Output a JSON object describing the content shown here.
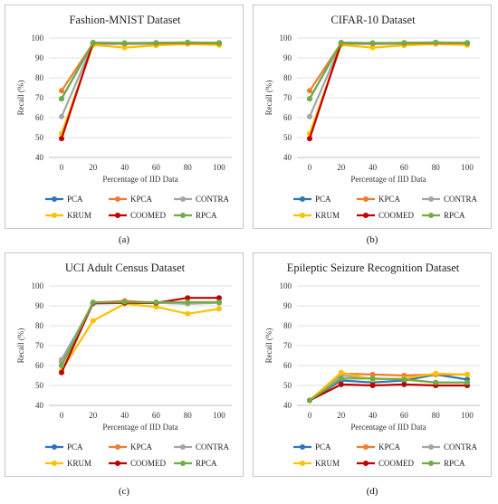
{
  "chart_data": [
    {
      "type": "line",
      "title": "Fashion-MNIST Dataset",
      "xlabel": "Percentage of IID Data",
      "ylabel": "Recall (%)",
      "categories": [
        "0",
        "20",
        "40",
        "60",
        "80",
        "100"
      ],
      "ylim": [
        40,
        100
      ],
      "yticks": [
        40,
        50,
        60,
        70,
        80,
        90,
        100
      ],
      "legend_position": "bottom",
      "caption": "(a)",
      "series": [
        {
          "name": "PCA",
          "color": "#2e75b6",
          "values": [
            69.5,
            97.5,
            97.3,
            97.4,
            97.6,
            97.4
          ]
        },
        {
          "name": "KPCA",
          "color": "#ed7d31",
          "values": [
            73.5,
            97.4,
            97.2,
            97.3,
            97.5,
            97.3
          ]
        },
        {
          "name": "CONTRA",
          "color": "#a5a5a5",
          "values": [
            60.5,
            97.0,
            97.0,
            97.1,
            97.3,
            97.1
          ]
        },
        {
          "name": "KRUM",
          "color": "#ffc000",
          "values": [
            52.0,
            96.5,
            95.2,
            96.3,
            97.0,
            96.5
          ]
        },
        {
          "name": "COOMED",
          "color": "#c00000",
          "values": [
            49.5,
            97.6,
            97.4,
            97.5,
            97.7,
            97.5
          ]
        },
        {
          "name": "RPCA",
          "color": "#70ad47",
          "values": [
            69.5,
            97.7,
            97.5,
            97.6,
            97.8,
            97.6
          ]
        }
      ]
    },
    {
      "type": "line",
      "title": "CIFAR-10 Dataset",
      "xlabel": "Percentage of IID Data",
      "ylabel": "Recall (%)",
      "categories": [
        "0",
        "20",
        "40",
        "60",
        "80",
        "100"
      ],
      "ylim": [
        40,
        100
      ],
      "yticks": [
        40,
        50,
        60,
        70,
        80,
        90,
        100
      ],
      "legend_position": "bottom",
      "caption": "(b)",
      "series": [
        {
          "name": "PCA",
          "color": "#2e75b6",
          "values": [
            69.5,
            97.5,
            97.3,
            97.4,
            97.6,
            97.4
          ]
        },
        {
          "name": "KPCA",
          "color": "#ed7d31",
          "values": [
            73.5,
            97.4,
            97.2,
            97.3,
            97.5,
            97.3
          ]
        },
        {
          "name": "CONTRA",
          "color": "#a5a5a5",
          "values": [
            60.5,
            97.0,
            97.0,
            97.1,
            97.3,
            97.1
          ]
        },
        {
          "name": "KRUM",
          "color": "#ffc000",
          "values": [
            52.0,
            96.5,
            95.2,
            96.3,
            97.0,
            96.5
          ]
        },
        {
          "name": "COOMED",
          "color": "#c00000",
          "values": [
            49.5,
            97.6,
            97.4,
            97.5,
            97.7,
            97.5
          ]
        },
        {
          "name": "RPCA",
          "color": "#70ad47",
          "values": [
            69.5,
            97.7,
            97.5,
            97.6,
            97.8,
            97.6
          ]
        }
      ]
    },
    {
      "type": "line",
      "title": "UCI Adult Census Dataset",
      "xlabel": "Percentage of IID Data",
      "ylabel": "Recall (%)",
      "categories": [
        "0",
        "20",
        "40",
        "60",
        "80",
        "100"
      ],
      "ylim": [
        40,
        100
      ],
      "yticks": [
        40,
        50,
        60,
        70,
        80,
        90,
        100
      ],
      "legend_position": "bottom",
      "caption": "(c)",
      "series": [
        {
          "name": "PCA",
          "color": "#2e75b6",
          "values": [
            60.0,
            91.5,
            91.5,
            91.5,
            91.5,
            91.8
          ]
        },
        {
          "name": "KPCA",
          "color": "#ed7d31",
          "values": [
            62.0,
            91.5,
            92.5,
            91.5,
            91.5,
            91.8
          ]
        },
        {
          "name": "CONTRA",
          "color": "#a5a5a5",
          "values": [
            63.0,
            91.0,
            91.5,
            91.5,
            91.0,
            91.5
          ]
        },
        {
          "name": "KRUM",
          "color": "#ffc000",
          "values": [
            57.5,
            82.5,
            91.0,
            89.5,
            86.0,
            88.5
          ]
        },
        {
          "name": "COOMED",
          "color": "#c00000",
          "values": [
            56.5,
            91.5,
            91.5,
            91.5,
            94.0,
            94.0
          ]
        },
        {
          "name": "RPCA",
          "color": "#70ad47",
          "values": [
            60.0,
            91.8,
            92.0,
            91.8,
            91.8,
            91.8
          ]
        }
      ]
    },
    {
      "type": "line",
      "title": "Epileptic Seizure Recognition Dataset",
      "xlabel": "Percentage of IID Data",
      "ylabel": "Recall (%)",
      "categories": [
        "0",
        "20",
        "40",
        "60",
        "80",
        "100"
      ],
      "ylim": [
        40,
        100
      ],
      "yticks": [
        40,
        50,
        60,
        70,
        80,
        90,
        100
      ],
      "legend_position": "bottom",
      "caption": "(d)",
      "series": [
        {
          "name": "PCA",
          "color": "#2e75b6",
          "values": [
            42.5,
            52.5,
            51.5,
            52.5,
            55.5,
            53.0
          ]
        },
        {
          "name": "KPCA",
          "color": "#ed7d31",
          "values": [
            42.5,
            56.0,
            55.5,
            55.0,
            55.5,
            55.5
          ]
        },
        {
          "name": "CONTRA",
          "color": "#a5a5a5",
          "values": [
            42.5,
            55.0,
            53.5,
            53.0,
            51.5,
            51.5
          ]
        },
        {
          "name": "KRUM",
          "color": "#ffc000",
          "values": [
            42.5,
            56.5,
            53.0,
            53.5,
            56.0,
            55.5
          ]
        },
        {
          "name": "COOMED",
          "color": "#c00000",
          "values": [
            42.5,
            50.5,
            50.0,
            50.5,
            50.0,
            50.0
          ]
        },
        {
          "name": "RPCA",
          "color": "#70ad47",
          "values": [
            42.5,
            53.5,
            53.5,
            53.0,
            51.5,
            51.5
          ]
        }
      ]
    }
  ]
}
